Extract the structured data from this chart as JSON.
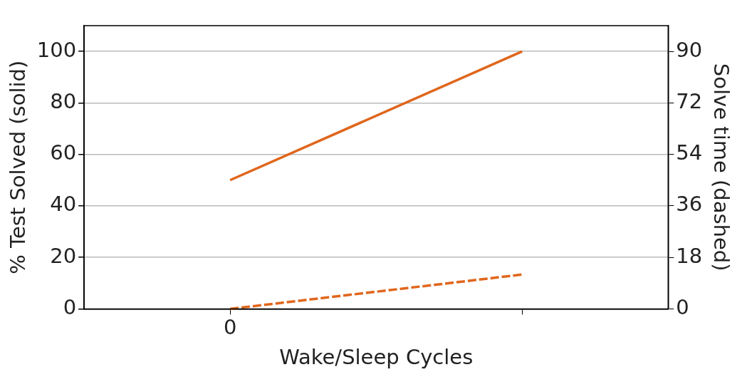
{
  "chart_data": {
    "type": "line",
    "xlabel": "Wake/Sleep Cycles",
    "ylabel": "% Test Solved (solid)",
    "y2label": "Solve time (dashed)",
    "categories": [
      "0",
      null
    ],
    "ylim": [
      0,
      110
    ],
    "yticks": [
      0,
      20,
      40,
      60,
      80,
      100
    ],
    "y2lim": [
      0,
      99
    ],
    "y2ticks": [
      0,
      18,
      36,
      54,
      72,
      90
    ],
    "grid": "y",
    "legend": false,
    "marker": "none",
    "series": [
      {
        "color": "#e0661c",
        "values": [
          50,
          100
        ],
        "line_style": "solid"
      },
      {
        "color": "#e0661c",
        "values": [
          0,
          12
        ],
        "line_style": "dashed",
        "axis": "y2"
      }
    ]
  }
}
